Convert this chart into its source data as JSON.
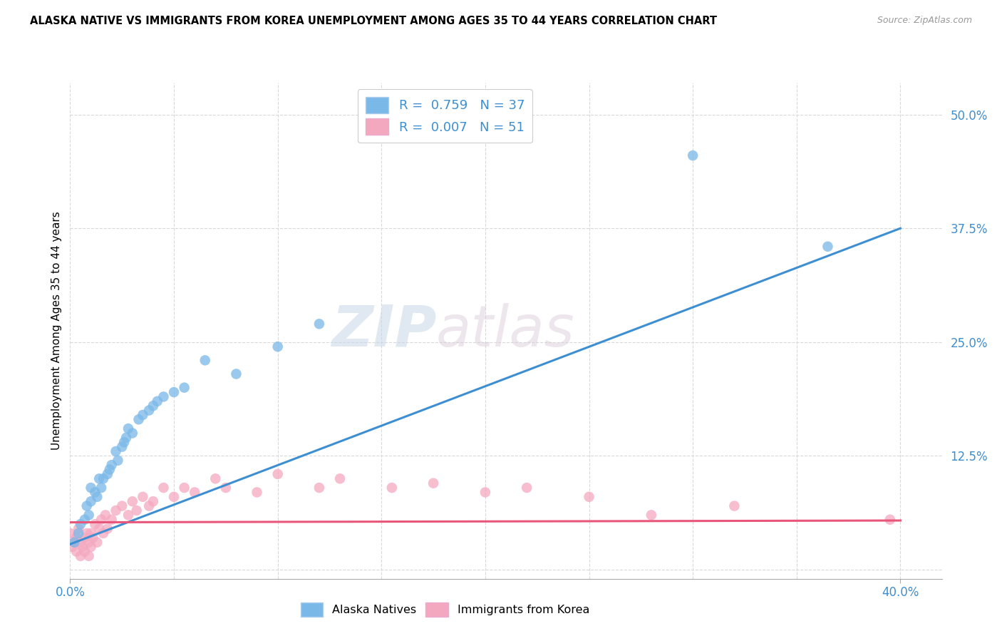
{
  "title": "ALASKA NATIVE VS IMMIGRANTS FROM KOREA UNEMPLOYMENT AMONG AGES 35 TO 44 YEARS CORRELATION CHART",
  "source": "Source: ZipAtlas.com",
  "ylabel": "Unemployment Among Ages 35 to 44 years",
  "xlim": [
    0.0,
    0.42
  ],
  "ylim": [
    -0.01,
    0.535
  ],
  "xtick_positions": [
    0.0,
    0.4
  ],
  "xticklabels": [
    "0.0%",
    "40.0%"
  ],
  "ytick_positions": [
    0.0,
    0.125,
    0.25,
    0.375,
    0.5
  ],
  "ytick_labels": [
    "",
    "12.5%",
    "25.0%",
    "37.5%",
    "50.0%"
  ],
  "grid_color": "#d9d9d9",
  "background_color": "#ffffff",
  "watermark_zip": "ZIP",
  "watermark_atlas": "atlas",
  "blue_color": "#7ab8e8",
  "pink_color": "#f4a8c0",
  "blue_line_color": "#3d8fd1",
  "pink_line_color": "#e8567a",
  "legend_label_blue": "R =  0.759   N = 37",
  "legend_label_pink": "R =  0.007   N = 51",
  "alaska_x": [
    0.002,
    0.004,
    0.005,
    0.007,
    0.008,
    0.009,
    0.01,
    0.01,
    0.012,
    0.013,
    0.014,
    0.015,
    0.016,
    0.018,
    0.019,
    0.02,
    0.022,
    0.023,
    0.025,
    0.026,
    0.027,
    0.028,
    0.03,
    0.033,
    0.035,
    0.038,
    0.04,
    0.042,
    0.045,
    0.05,
    0.055,
    0.065,
    0.08,
    0.1,
    0.12,
    0.3,
    0.365
  ],
  "alaska_y": [
    0.03,
    0.04,
    0.05,
    0.055,
    0.07,
    0.06,
    0.075,
    0.09,
    0.085,
    0.08,
    0.1,
    0.09,
    0.1,
    0.105,
    0.11,
    0.115,
    0.13,
    0.12,
    0.135,
    0.14,
    0.145,
    0.155,
    0.15,
    0.165,
    0.17,
    0.175,
    0.18,
    0.185,
    0.19,
    0.195,
    0.2,
    0.23,
    0.215,
    0.245,
    0.27,
    0.455,
    0.355
  ],
  "korea_x": [
    0.0,
    0.001,
    0.002,
    0.003,
    0.003,
    0.004,
    0.005,
    0.005,
    0.006,
    0.007,
    0.007,
    0.008,
    0.009,
    0.009,
    0.01,
    0.01,
    0.011,
    0.012,
    0.013,
    0.014,
    0.015,
    0.016,
    0.017,
    0.018,
    0.02,
    0.022,
    0.025,
    0.028,
    0.03,
    0.032,
    0.035,
    0.038,
    0.04,
    0.045,
    0.05,
    0.055,
    0.06,
    0.07,
    0.075,
    0.09,
    0.1,
    0.12,
    0.13,
    0.155,
    0.175,
    0.2,
    0.22,
    0.25,
    0.28,
    0.32,
    0.395
  ],
  "korea_y": [
    0.04,
    0.025,
    0.03,
    0.02,
    0.035,
    0.045,
    0.015,
    0.03,
    0.025,
    0.02,
    0.035,
    0.04,
    0.015,
    0.03,
    0.025,
    0.04,
    0.035,
    0.05,
    0.03,
    0.045,
    0.055,
    0.04,
    0.06,
    0.045,
    0.055,
    0.065,
    0.07,
    0.06,
    0.075,
    0.065,
    0.08,
    0.07,
    0.075,
    0.09,
    0.08,
    0.09,
    0.085,
    0.1,
    0.09,
    0.085,
    0.105,
    0.09,
    0.1,
    0.09,
    0.095,
    0.085,
    0.09,
    0.08,
    0.06,
    0.07,
    0.055
  ],
  "blue_trendline_x": [
    0.0,
    0.4
  ],
  "blue_trendline_y": [
    0.028,
    0.375
  ],
  "pink_trendline_x": [
    0.0,
    0.4
  ],
  "pink_trendline_y": [
    0.052,
    0.054
  ]
}
